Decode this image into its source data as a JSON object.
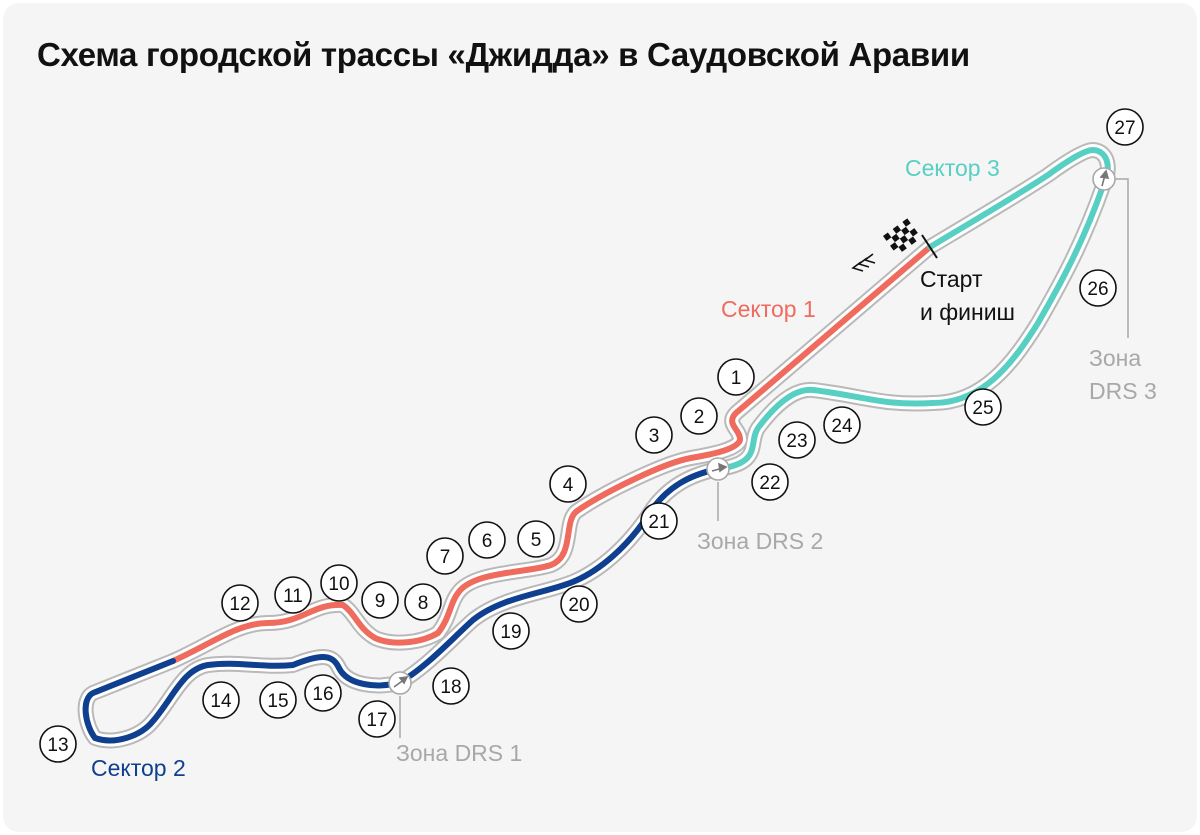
{
  "title": "Схема городской трассы «Джидда» в Саудовской Аравии",
  "colors": {
    "sector1": "#ef6b5e",
    "sector2": "#0f3f8f",
    "sector3": "#58cfc3",
    "drs": "#a8a8a8",
    "track_outline": "#b9b9b9"
  },
  "sectors": [
    {
      "id": "sector1",
      "label": "Сектор 1"
    },
    {
      "id": "sector2",
      "label": "Сектор 2"
    },
    {
      "id": "sector3",
      "label": "Сектор 3"
    }
  ],
  "start_finish": {
    "line1": "Старт",
    "line2": "и финиш",
    "icon": "checkered-flag-icon",
    "direction_icon": "direction-chevrons-icon"
  },
  "drs_zones": [
    {
      "id": "drs1",
      "label": "Зона DRS 1",
      "icon": "drs-arrow-icon"
    },
    {
      "id": "drs2",
      "label": "Зона DRS 2",
      "icon": "drs-arrow-icon"
    },
    {
      "id": "drs3",
      "label_line1": "Зона",
      "label_line2": "DRS 3",
      "icon": "drs-arrow-icon"
    }
  ],
  "turns": [
    "1",
    "2",
    "3",
    "4",
    "5",
    "6",
    "7",
    "8",
    "9",
    "10",
    "11",
    "12",
    "13",
    "14",
    "15",
    "16",
    "17",
    "18",
    "19",
    "20",
    "21",
    "22",
    "23",
    "24",
    "25",
    "26",
    "27"
  ]
}
